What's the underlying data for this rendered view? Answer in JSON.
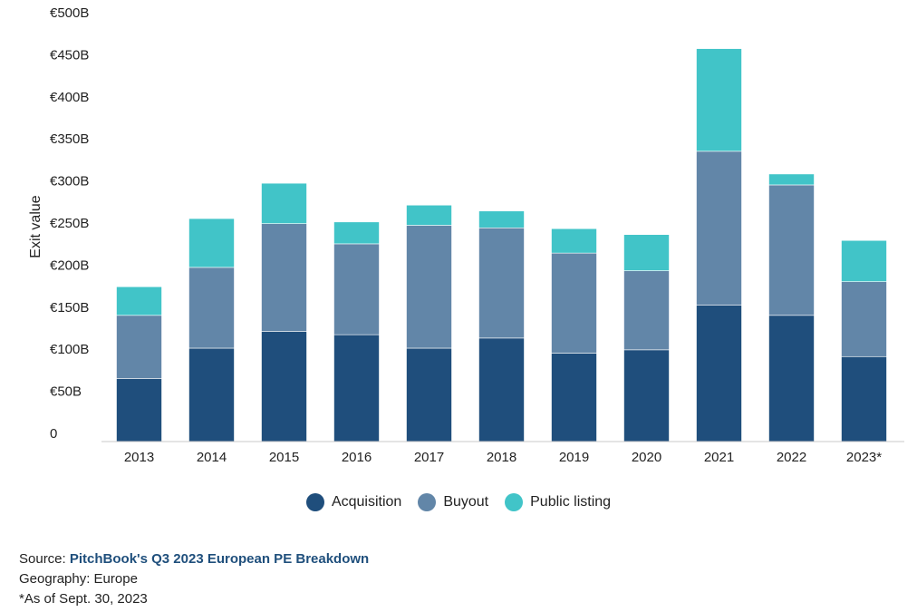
{
  "chart_data": {
    "type": "bar",
    "stacked": true,
    "categories": [
      "2013",
      "2014",
      "2015",
      "2016",
      "2017",
      "2018",
      "2019",
      "2020",
      "2021",
      "2022",
      "2023*"
    ],
    "series": [
      {
        "name": "Acquisition",
        "color": "#1f4e7c",
        "values": [
          75,
          111,
          131,
          127,
          111,
          123,
          105,
          109,
          162,
          150,
          101
        ]
      },
      {
        "name": "Buyout",
        "color": "#6286a8",
        "values": [
          75,
          96,
          128,
          108,
          146,
          131,
          119,
          94,
          183,
          155,
          89
        ]
      },
      {
        "name": "Public listing",
        "color": "#41c4c8",
        "values": [
          34,
          58,
          48,
          26,
          24,
          20,
          29,
          43,
          122,
          13,
          49
        ]
      }
    ],
    "ylabel": "Exit value",
    "ylim": [
      0,
      500
    ],
    "yticks": [
      0,
      50,
      100,
      150,
      200,
      250,
      300,
      350,
      400,
      450,
      500
    ],
    "ytick_labels": [
      "0",
      "€50B",
      "€100B",
      "€150B",
      "€200B",
      "€250B",
      "€300B",
      "€350B",
      "€400B",
      "€450B",
      "€500B"
    ],
    "grid": false,
    "legend_position": "bottom"
  },
  "footer": {
    "source_prefix": "Source: ",
    "source_title": "PitchBook's Q3 2023 European PE Breakdown",
    "geography": "Geography: Europe",
    "note": "*As of Sept. 30, 2023"
  }
}
